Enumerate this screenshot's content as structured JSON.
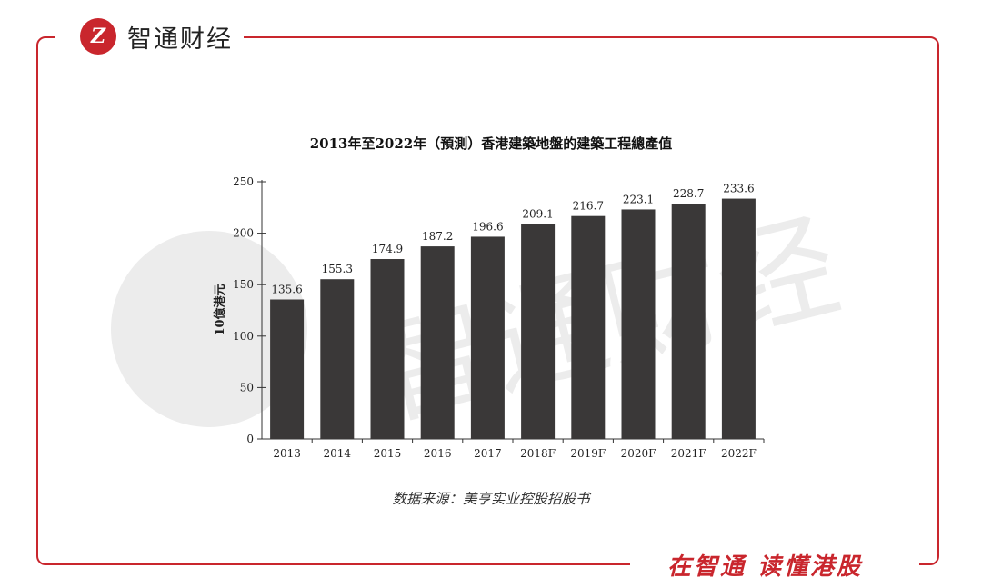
{
  "brand": {
    "logo_text": "Z",
    "name": "智通财经"
  },
  "slogan": "在智通  读懂港股",
  "source": "数据来源：美亨实业控股招股书",
  "colors": {
    "accent": "#c9262d",
    "bar": "#3a3838",
    "watermark": "#ececec"
  },
  "watermark_text": "智通财经",
  "chart_data": {
    "type": "bar",
    "title": "2013年至2022年（預測）香港建築地盤的建築工程總產值",
    "xlabel": "",
    "ylabel": "10億港元",
    "ylim": [
      0,
      250
    ],
    "yticks": [
      0,
      50,
      100,
      150,
      200,
      250
    ],
    "categories": [
      "2013",
      "2014",
      "2015",
      "2016",
      "2017",
      "2018F",
      "2019F",
      "2020F",
      "2021F",
      "2022F"
    ],
    "values": [
      135.6,
      155.3,
      174.9,
      187.2,
      196.6,
      209.1,
      216.7,
      223.1,
      228.7,
      233.6
    ],
    "value_labels": [
      "135.6",
      "155.3",
      "174.9",
      "187.2",
      "196.6",
      "209.1",
      "216.7",
      "223.1",
      "228.7",
      "233.6"
    ],
    "grid": false,
    "legend": "none"
  }
}
